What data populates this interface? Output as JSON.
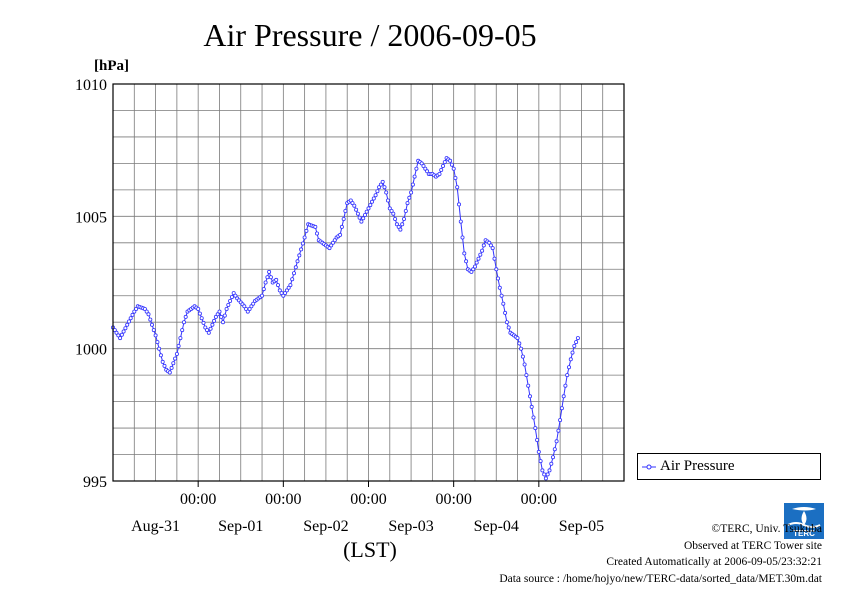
{
  "chart_data": {
    "type": "line",
    "title": "Air Pressure / 2006-09-05",
    "ylabel": "[hPa]",
    "xlabel": "(LST)",
    "ylim": [
      995,
      1010
    ],
    "yticks": [
      995,
      1000,
      1005,
      1010
    ],
    "ytick_labels": [
      "995",
      "1000",
      "1005",
      "1010"
    ],
    "x_range_hours": [
      0,
      144
    ],
    "xticks_hours": [
      24,
      48,
      72,
      96,
      120
    ],
    "xtick_time_label": "00:00",
    "day_labels": [
      "Aug-31",
      "Sep-01",
      "Sep-02",
      "Sep-03",
      "Sep-04",
      "Sep-05"
    ],
    "day_label_hours": [
      12,
      36,
      60,
      84,
      108,
      132
    ],
    "grid": true,
    "legend_position": "right",
    "series": [
      {
        "name": "Air Pressure",
        "color": "#3333ff",
        "points": [
          [
            0,
            1000.8
          ],
          [
            2,
            1000.4
          ],
          [
            4,
            1000.9
          ],
          [
            6,
            1001.4
          ],
          [
            7,
            1001.6
          ],
          [
            9,
            1001.5
          ],
          [
            10,
            1001.3
          ],
          [
            12,
            1000.5
          ],
          [
            14,
            999.5
          ],
          [
            15,
            999.2
          ],
          [
            16,
            999.1
          ],
          [
            18,
            999.8
          ],
          [
            20,
            1001.0
          ],
          [
            21,
            1001.4
          ],
          [
            23,
            1001.6
          ],
          [
            24,
            1001.5
          ],
          [
            26,
            1000.8
          ],
          [
            27,
            1000.6
          ],
          [
            29,
            1001.2
          ],
          [
            30,
            1001.4
          ],
          [
            31,
            1001.0
          ],
          [
            32,
            1001.5
          ],
          [
            34,
            1002.1
          ],
          [
            35,
            1001.9
          ],
          [
            37,
            1001.6
          ],
          [
            38,
            1001.4
          ],
          [
            40,
            1001.8
          ],
          [
            42,
            1002.0
          ],
          [
            43,
            1002.5
          ],
          [
            44,
            1002.9
          ],
          [
            45,
            1002.5
          ],
          [
            46,
            1002.6
          ],
          [
            47,
            1002.2
          ],
          [
            48,
            1002.0
          ],
          [
            50,
            1002.4
          ],
          [
            52,
            1003.3
          ],
          [
            54,
            1004.2
          ],
          [
            55,
            1004.7
          ],
          [
            57,
            1004.6
          ],
          [
            58,
            1004.1
          ],
          [
            60,
            1003.9
          ],
          [
            61,
            1003.8
          ],
          [
            63,
            1004.2
          ],
          [
            64,
            1004.3
          ],
          [
            65,
            1004.9
          ],
          [
            66,
            1005.5
          ],
          [
            67,
            1005.6
          ],
          [
            68,
            1005.4
          ],
          [
            69,
            1005.1
          ],
          [
            70,
            1004.8
          ],
          [
            72,
            1005.3
          ],
          [
            74,
            1005.8
          ],
          [
            75,
            1006.1
          ],
          [
            76,
            1006.3
          ],
          [
            77,
            1005.9
          ],
          [
            78,
            1005.3
          ],
          [
            79,
            1005.1
          ],
          [
            80,
            1004.7
          ],
          [
            81,
            1004.5
          ],
          [
            82,
            1004.9
          ],
          [
            83,
            1005.5
          ],
          [
            84,
            1005.9
          ],
          [
            85,
            1006.5
          ],
          [
            86,
            1007.1
          ],
          [
            87,
            1007.0
          ],
          [
            88,
            1006.8
          ],
          [
            89,
            1006.6
          ],
          [
            90,
            1006.6
          ],
          [
            91,
            1006.5
          ],
          [
            92,
            1006.6
          ],
          [
            93,
            1006.9
          ],
          [
            94,
            1007.2
          ],
          [
            95,
            1007.1
          ],
          [
            96,
            1006.8
          ],
          [
            97,
            1006.1
          ],
          [
            98,
            1004.8
          ],
          [
            99,
            1003.6
          ],
          [
            100,
            1003.0
          ],
          [
            101,
            1002.9
          ],
          [
            102,
            1003.1
          ],
          [
            103,
            1003.4
          ],
          [
            104,
            1003.7
          ],
          [
            105,
            1004.1
          ],
          [
            106,
            1004.0
          ],
          [
            107,
            1003.8
          ],
          [
            108,
            1003.0
          ],
          [
            109,
            1002.3
          ],
          [
            110,
            1001.7
          ],
          [
            111,
            1001.0
          ],
          [
            112,
            1000.6
          ],
          [
            113,
            1000.5
          ],
          [
            114,
            1000.4
          ],
          [
            115,
            1000.0
          ],
          [
            116,
            999.4
          ],
          [
            117,
            998.6
          ],
          [
            118,
            997.8
          ],
          [
            119,
            997.0
          ],
          [
            120,
            996.1
          ],
          [
            121,
            995.4
          ],
          [
            122,
            995.1
          ],
          [
            123,
            995.4
          ],
          [
            124,
            995.9
          ],
          [
            125,
            996.5
          ],
          [
            126,
            997.3
          ],
          [
            127,
            998.2
          ],
          [
            128,
            999.0
          ],
          [
            129,
            999.6
          ],
          [
            130,
            1000.1
          ],
          [
            131,
            1000.4
          ]
        ]
      }
    ]
  },
  "footer": {
    "copyright": "©TERC, Univ. Tsukuba",
    "site": "Observed at TERC Tower site",
    "created": "Created Automatically at 2006-09-05/23:32:21",
    "source": "Data source : /home/hojyo/new/TERC-data/sorted_data/MET.30m.dat"
  },
  "logo_text": "TERC"
}
